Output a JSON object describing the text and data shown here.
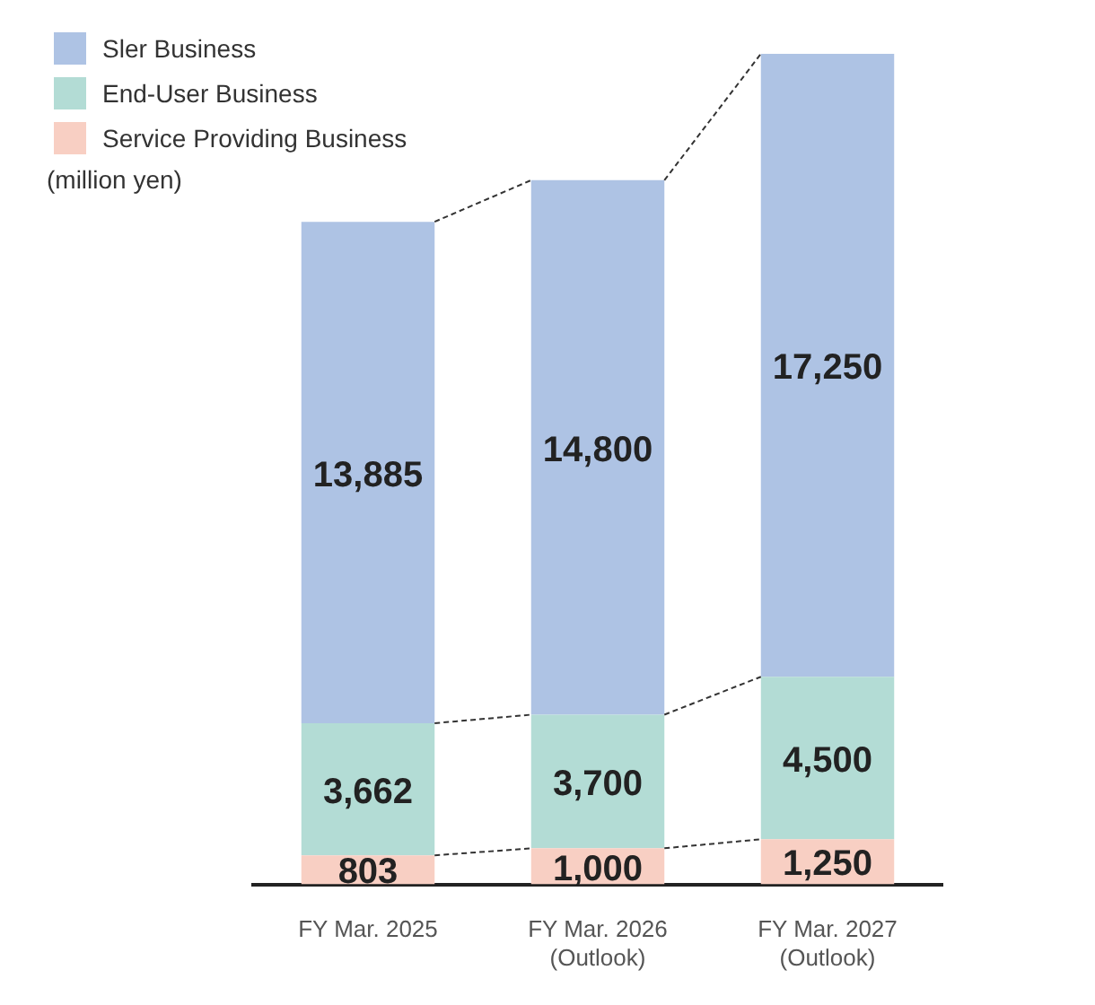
{
  "chart_data": {
    "type": "bar",
    "stacked": true,
    "legend": "top left",
    "ylabel": "(million yen)",
    "categories": [
      "FY Mar. 2025",
      "FY Mar. 2026\n(Outlook)",
      "FY Mar. 2027\n(Outlook)"
    ],
    "series": [
      {
        "name": "Service Providing Business",
        "color": "#f8cfc3",
        "values": [
          803,
          1000,
          1250
        ],
        "value_labels": [
          "803",
          "1,000",
          "1,250"
        ]
      },
      {
        "name": "End-User Business",
        "color": "#b3dcd5",
        "values": [
          3662,
          3700,
          4500
        ],
        "value_labels": [
          "3,662",
          "3,700",
          "4,500"
        ]
      },
      {
        "name": "Sler Business",
        "color": "#aec3e4",
        "values": [
          13885,
          14800,
          17250
        ],
        "value_labels": [
          "13,885",
          "14,800",
          "17,250"
        ]
      }
    ]
  }
}
